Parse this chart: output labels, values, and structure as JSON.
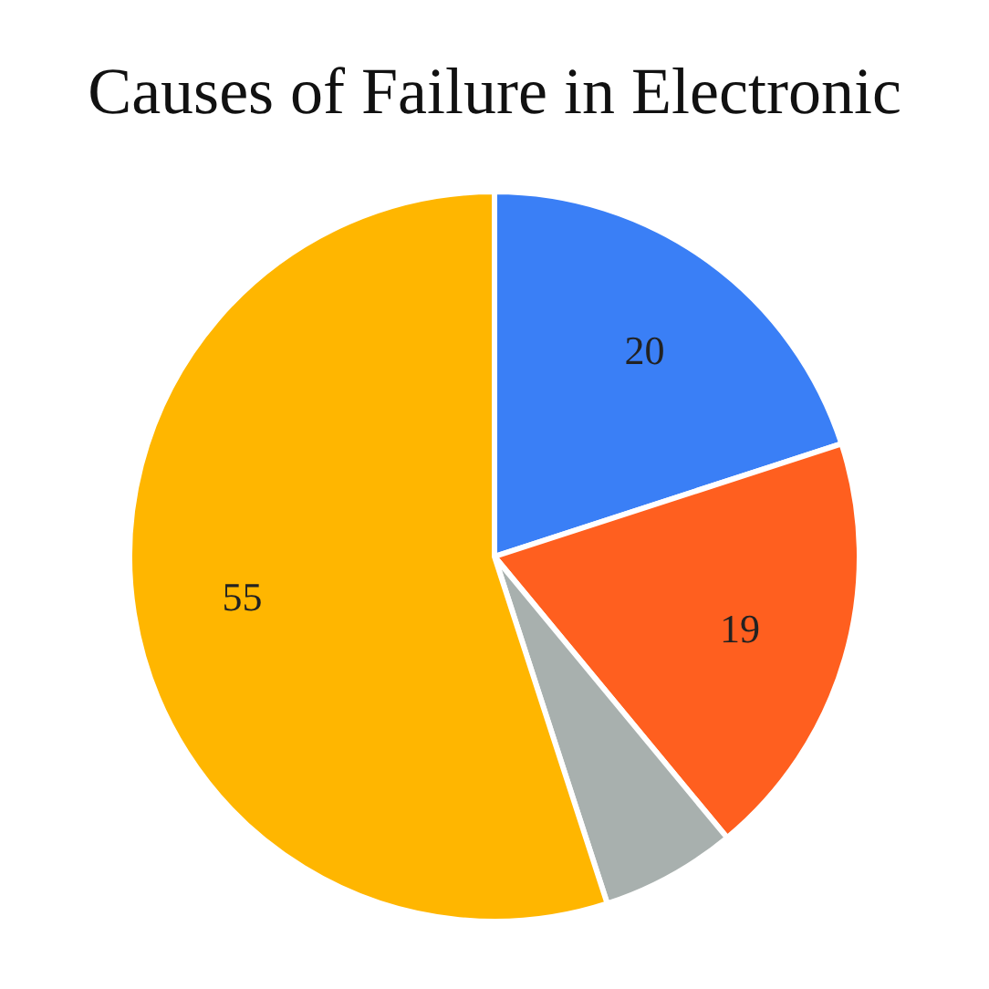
{
  "chart_data": {
    "type": "pie",
    "title": "Causes of Failure in Electronic",
    "categories": [
      null,
      null,
      null,
      null
    ],
    "values": [
      20,
      19,
      6,
      55
    ],
    "colors": [
      "#3a7ff6",
      "#ff5f1f",
      "#a8b0ae",
      "#ffb600"
    ],
    "value_labels": [
      "20",
      "19",
      null,
      "55"
    ]
  }
}
